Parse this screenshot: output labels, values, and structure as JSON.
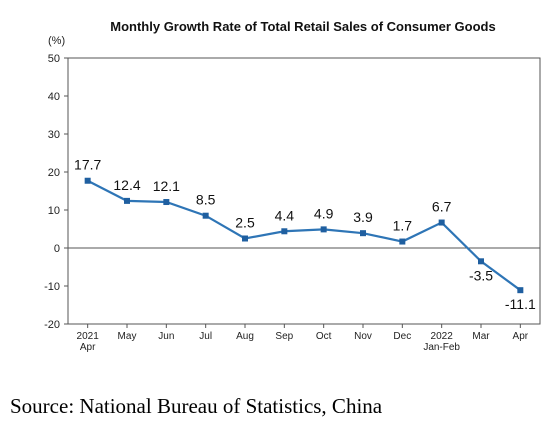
{
  "chart_data": {
    "type": "line",
    "title": "Monthly Growth Rate of Total Retail Sales of Consumer Goods",
    "unit": "(%)",
    "categories": [
      [
        "2021",
        "Apr"
      ],
      [
        "May"
      ],
      [
        "Jun"
      ],
      [
        "Jul"
      ],
      [
        "Aug"
      ],
      [
        "Sep"
      ],
      [
        "Oct"
      ],
      [
        "Nov"
      ],
      [
        "Dec"
      ],
      [
        "2022",
        "Jan-Feb"
      ],
      [
        "Mar"
      ],
      [
        "Apr"
      ]
    ],
    "values": [
      17.7,
      12.4,
      12.1,
      8.5,
      2.5,
      4.4,
      4.9,
      3.9,
      1.7,
      6.7,
      -3.5,
      -11.1
    ],
    "value_labels": [
      "17.7",
      "12.4",
      "12.1",
      "8.5",
      "2.5",
      "4.4",
      "4.9",
      "3.9",
      "1.7",
      "6.7",
      "-3.5",
      "-11.1"
    ],
    "ylim": [
      -20,
      50
    ],
    "yticks": [
      50,
      40,
      30,
      20,
      10,
      0,
      -10,
      -20
    ],
    "grid": false,
    "legend": "none",
    "line_color": "#2e75b6",
    "marker_color": "#1f5fa0",
    "axis_color": "#555555"
  },
  "source": "Source: National Bureau of Statistics, China"
}
